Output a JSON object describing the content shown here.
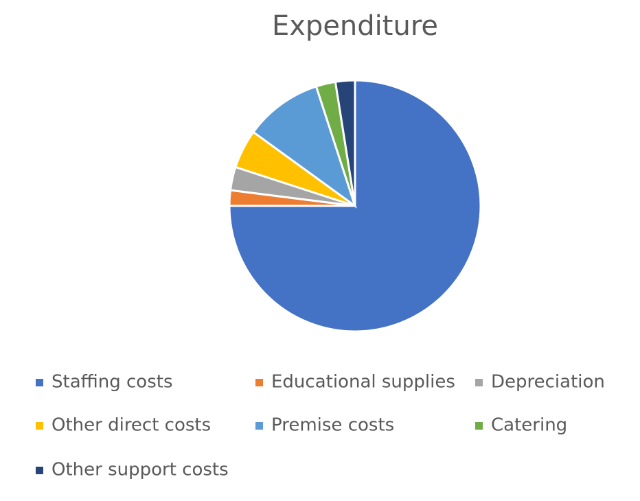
{
  "chart_data": {
    "type": "pie",
    "title": "Expenditure",
    "categories": [
      "Staffing costs",
      "Educational supplies",
      "Depreciation",
      "Other direct costs",
      "Premise costs",
      "Catering",
      "Other support costs"
    ],
    "values": [
      75,
      2,
      3,
      5,
      10,
      2.5,
      2.5
    ],
    "colors": [
      "#4472c4",
      "#ed7d31",
      "#a5a5a5",
      "#ffc000",
      "#5b9bd5",
      "#70ad47",
      "#264478"
    ],
    "legend": "bottom"
  }
}
